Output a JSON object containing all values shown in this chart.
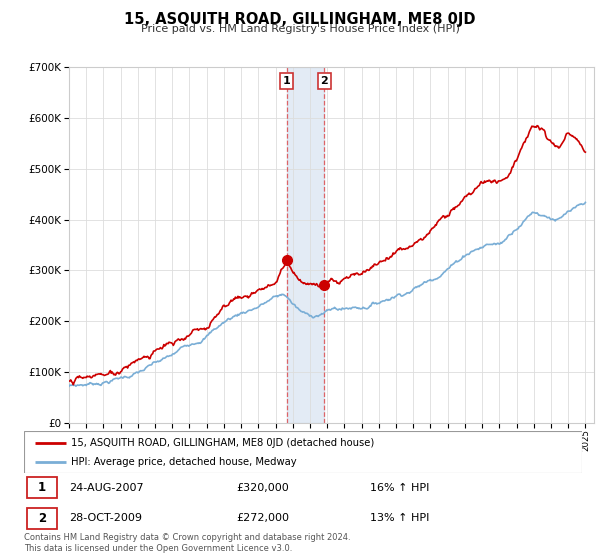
{
  "title": "15, ASQUITH ROAD, GILLINGHAM, ME8 0JD",
  "subtitle": "Price paid vs. HM Land Registry's House Price Index (HPI)",
  "legend_line1": "15, ASQUITH ROAD, GILLINGHAM, ME8 0JD (detached house)",
  "legend_line2": "HPI: Average price, detached house, Medway",
  "annotation1_label": "1",
  "annotation1_date": "24-AUG-2007",
  "annotation1_price": "£320,000",
  "annotation1_hpi": "16% ↑ HPI",
  "annotation2_label": "2",
  "annotation2_date": "28-OCT-2009",
  "annotation2_price": "£272,000",
  "annotation2_hpi": "13% ↑ HPI",
  "footer": "Contains HM Land Registry data © Crown copyright and database right 2024.\nThis data is licensed under the Open Government Licence v3.0.",
  "sale1_year": 2007.65,
  "sale1_price": 320000,
  "sale2_year": 2009.83,
  "sale2_price": 272000,
  "property_color": "#cc0000",
  "hpi_color": "#7aaed6",
  "shade_color": "#c8d8ec",
  "ylim_min": 0,
  "ylim_max": 700000,
  "xlim_min": 1995.0,
  "xlim_max": 2025.5,
  "hpi_keypoints_x": [
    1995,
    1996,
    1997,
    1998,
    1999,
    2000,
    2001,
    2002,
    2003,
    2004,
    2005,
    2006,
    2007,
    2007.5,
    2008,
    2008.5,
    2009,
    2009.5,
    2010,
    2010.5,
    2011,
    2011.5,
    2012,
    2013,
    2014,
    2015,
    2016,
    2017,
    2017.5,
    2018,
    2018.5,
    2019,
    2019.5,
    2020,
    2020.5,
    2021,
    2021.5,
    2022,
    2022.5,
    2023,
    2023.5,
    2024,
    2024.5,
    2025
  ],
  "hpi_keypoints_y": [
    72000,
    76000,
    82000,
    90000,
    100000,
    115000,
    130000,
    155000,
    175000,
    200000,
    218000,
    232000,
    248000,
    252000,
    235000,
    218000,
    210000,
    215000,
    220000,
    225000,
    225000,
    228000,
    230000,
    240000,
    255000,
    268000,
    285000,
    310000,
    320000,
    335000,
    345000,
    350000,
    355000,
    355000,
    370000,
    390000,
    405000,
    420000,
    415000,
    410000,
    405000,
    415000,
    420000,
    425000
  ],
  "prop_keypoints_x": [
    1995,
    1996,
    1997,
    1998,
    1999,
    2000,
    2001,
    2002,
    2003,
    2004,
    2005,
    2006,
    2007,
    2007.65,
    2008,
    2008.5,
    2009,
    2009.83,
    2010,
    2010.5,
    2011,
    2011.5,
    2012,
    2013,
    2014,
    2015,
    2016,
    2017,
    2017.5,
    2018,
    2018.5,
    2019,
    2019.5,
    2020,
    2020.5,
    2021,
    2021.5,
    2022,
    2022.5,
    2023,
    2023.5,
    2024,
    2024.5,
    2025
  ],
  "prop_keypoints_y": [
    82000,
    87000,
    95000,
    105000,
    118000,
    135000,
    152000,
    178000,
    200000,
    225000,
    245000,
    262000,
    285000,
    320000,
    305000,
    285000,
    275000,
    272000,
    278000,
    285000,
    288000,
    292000,
    295000,
    310000,
    330000,
    350000,
    375000,
    410000,
    425000,
    445000,
    455000,
    465000,
    472000,
    475000,
    490000,
    520000,
    545000,
    570000,
    560000,
    545000,
    540000,
    555000,
    545000,
    535000
  ]
}
